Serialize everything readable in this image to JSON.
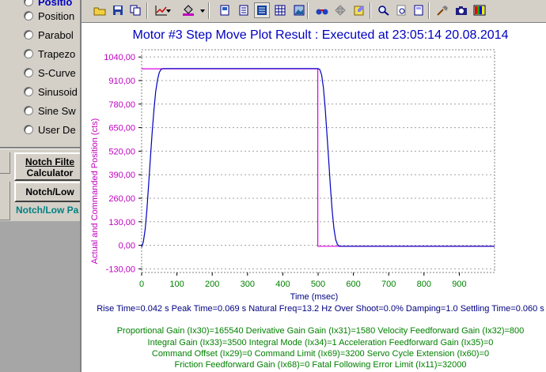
{
  "left_panel": {
    "radios": [
      {
        "label": "Positio",
        "selected": true
      },
      {
        "label": "Position"
      },
      {
        "label": "Parabol"
      },
      {
        "label": "Trapezo"
      },
      {
        "label": "S-Curve"
      },
      {
        "label": "Sinusoid"
      },
      {
        "label": "Sine Sw"
      },
      {
        "label": "User De"
      }
    ],
    "notch_filter_button": {
      "line1": "Notch Filte",
      "line2": "Calculator"
    },
    "notch_low_button": "Notch/Low",
    "notch_low_pass_label": "Notch/Low Pa"
  },
  "toolbar": {
    "icons": [
      "open-folder-icon",
      "save-icon",
      "copy-icon",
      "chart-type-icon",
      "fill-color-icon",
      "page-icon",
      "table-view-icon",
      "list-view-icon",
      "grid-icon",
      "image-icon",
      "binoculars-icon",
      "move-icon",
      "notes-icon",
      "zoom-icon",
      "zoom-page-icon",
      "print-preview-icon",
      "tools-icon",
      "camera-icon",
      "palette-icon"
    ],
    "active_icon": "list-view-icon"
  },
  "plot": {
    "title": "Motor #3 Step Move Plot Result : Executed at 23:05:14 20.08.2014",
    "stats_line": "Rise Time=0.042 s  Peak Time=0.069 s  Natural Freq=13.2 Hz  Over Shoot=0.0%  Damping=1.0  Settling Time=0.060 s",
    "gain_lines": [
      "Proportional Gain (Ix30)=165540  Derivative Gain Gain (Ix31)=1580  Velocity Feedforward Gain (Ix32)=800",
      "Integral Gain (Ix33)=3500  Integral Mode (Ix34)=1  Acceleration Feedforward Gain (Ix35)=0",
      "Command Offset (Ix29)=0  Command Limit (Ix69)=3200  Servo Cycle Extension (Ix60)=0",
      "Friction Feedforward Gain (Ix68)=0  Fatal Following Error Limit (Ix11)=32000"
    ],
    "colors": {
      "commanded": "#e000e0",
      "actual": "#0000c0",
      "title": "#0000c0",
      "grid": "#808080"
    }
  },
  "chart_data": {
    "type": "line",
    "title": "Motor #3 Step Move Plot Result : Executed at 23:05:14 20.08.2014",
    "xlabel": "Time (msec)",
    "ylabel": "Actual and Commanded Position (cts)",
    "xlim": [
      0,
      1000
    ],
    "ylim": [
      -130,
      1040
    ],
    "x_ticks": [
      "0",
      "100",
      "200",
      "300",
      "400",
      "500",
      "600",
      "700",
      "800",
      "900"
    ],
    "y_ticks": [
      "1040,00",
      "910,00",
      "780,00",
      "650,00",
      "520,00",
      "390,00",
      "260,00",
      "130,00",
      "0,00",
      "-130,00"
    ],
    "y_tick_values": [
      1040,
      910,
      780,
      650,
      520,
      390,
      260,
      130,
      0,
      -130
    ],
    "grid": "dotted",
    "series": [
      {
        "color": "#e000e0",
        "x": [
          0,
          499,
          499,
          1000
        ],
        "y": [
          975,
          975,
          -5,
          -5
        ]
      },
      {
        "color": "#0000c0",
        "x": [
          0,
          5,
          10,
          15,
          20,
          25,
          30,
          35,
          40,
          45,
          50,
          55,
          60,
          65,
          70,
          500,
          505,
          510,
          515,
          520,
          525,
          530,
          535,
          540,
          545,
          550,
          555,
          560,
          565,
          1000
        ],
        "y": [
          -10,
          20,
          90,
          200,
          340,
          490,
          630,
          750,
          850,
          915,
          955,
          972,
          976,
          976,
          976,
          976,
          970,
          940,
          870,
          760,
          620,
          470,
          320,
          190,
          90,
          30,
          5,
          -5,
          -5,
          -5
        ]
      }
    ]
  }
}
